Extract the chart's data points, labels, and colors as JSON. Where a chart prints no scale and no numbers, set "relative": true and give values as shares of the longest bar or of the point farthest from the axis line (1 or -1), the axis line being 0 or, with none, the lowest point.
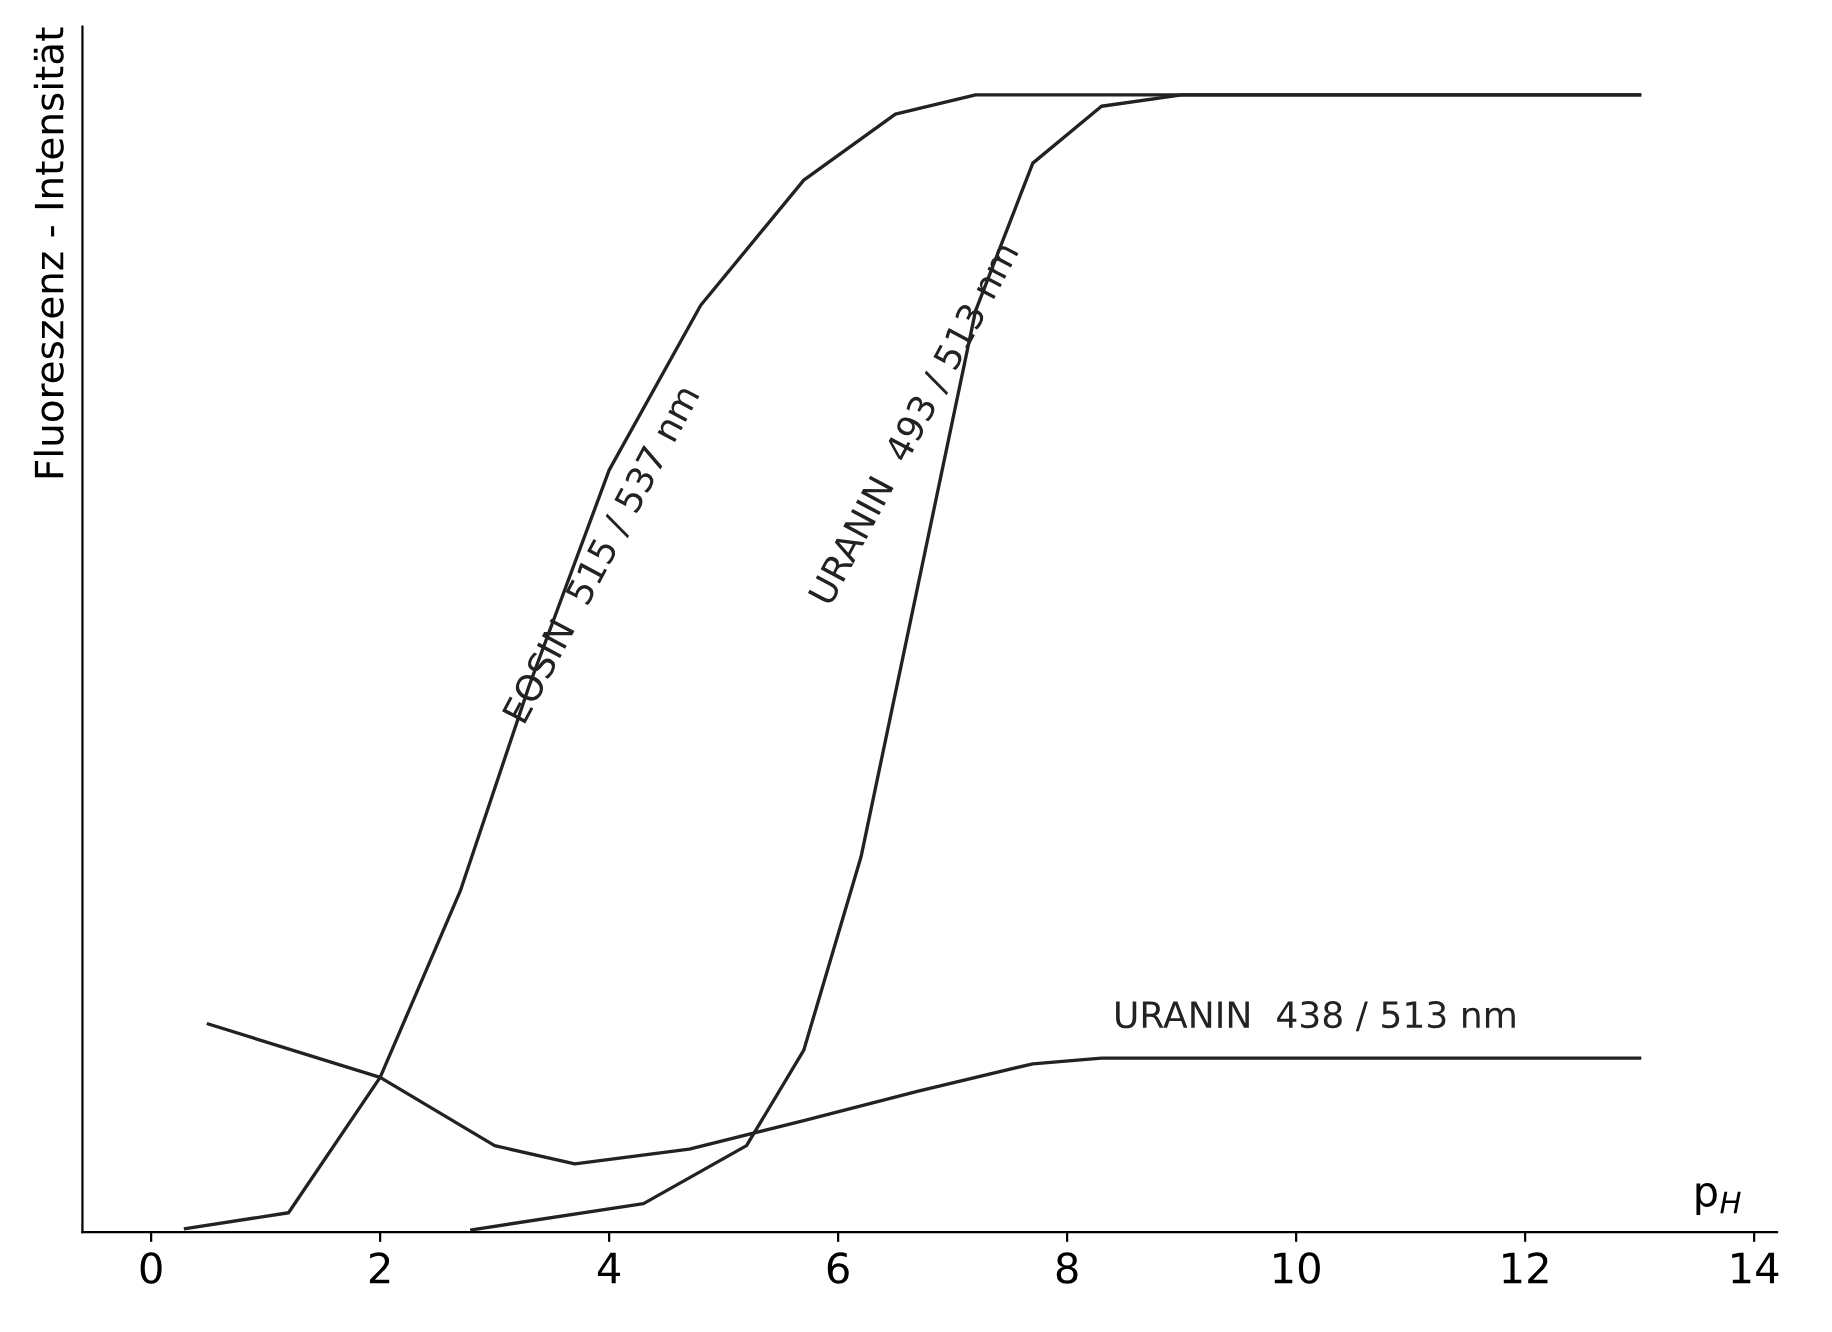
{
  "chart_data": {
    "type": "line",
    "relative": true,
    "xlabel": "p$_{H}$",
    "ylabel": "Fluoreszenz - Intensität",
    "xlim": [
      -0.6,
      14.2
    ],
    "xticks": [
      0,
      2,
      4,
      6,
      8,
      10,
      12,
      14
    ],
    "grid": false,
    "legend": false,
    "marker": "none",
    "line_style": "solid",
    "series": [
      {
        "name": "EOSIN  515 / 537 nm",
        "color": "#222222",
        "x": [
          0.3,
          1.2,
          2.0,
          2.7,
          3.3,
          4.0,
          4.8,
          5.7,
          6.5,
          7.2,
          13
        ],
        "values": [
          0.003,
          0.017,
          0.136,
          0.3,
          0.48,
          0.67,
          0.815,
          0.925,
          0.983,
          1,
          1
        ]
      },
      {
        "name": "URANIN  493 / 513 nm",
        "color": "#222222",
        "x": [
          2.8,
          4.3,
          5.2,
          5.7,
          6.2,
          6.7,
          7.2,
          7.7,
          8.3,
          9.0,
          13
        ],
        "values": [
          0.002,
          0.025,
          0.076,
          0.16,
          0.33,
          0.57,
          0.81,
          0.94,
          0.99,
          1,
          1
        ]
      },
      {
        "name": "URANIN  438 / 513 nm",
        "color": "#222222",
        "x": [
          0.5,
          2.0,
          3.0,
          3.7,
          4.7,
          5.7,
          6.7,
          7.7,
          8.3,
          13
        ],
        "values": [
          0.183,
          0.136,
          0.076,
          0.06,
          0.073,
          0.098,
          0.124,
          0.148,
          0.153,
          0.153
        ]
      }
    ]
  }
}
